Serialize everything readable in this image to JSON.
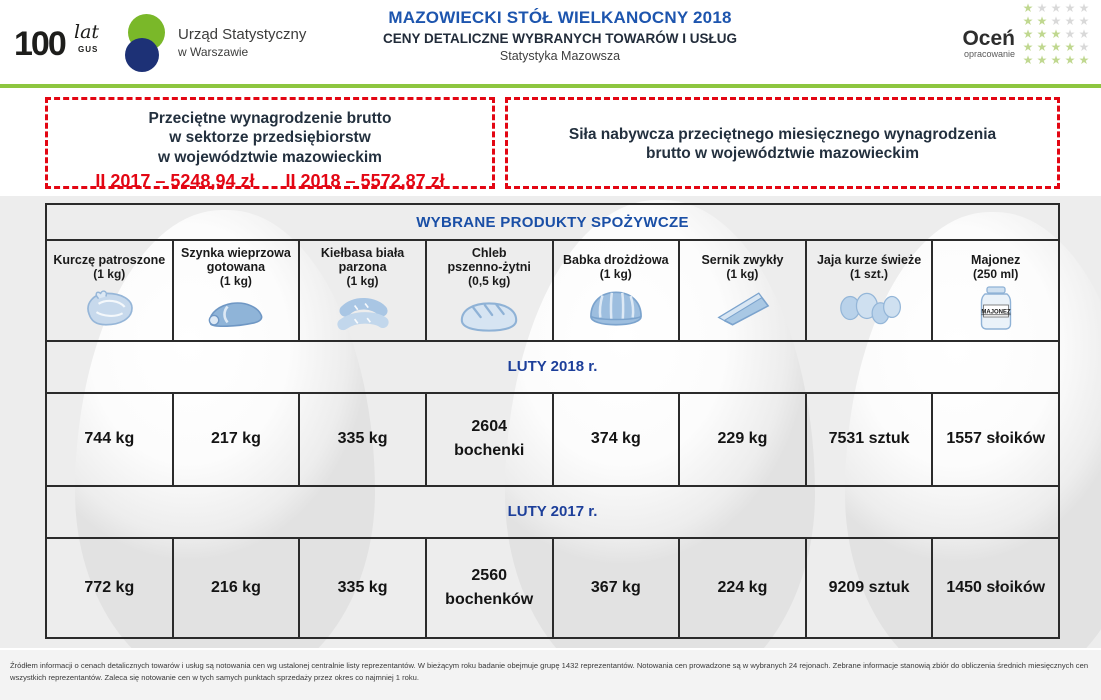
{
  "header": {
    "logo": {
      "num": "100",
      "lat": "lat",
      "gus": "GUS",
      "office_line1": "Urząd Statystyczny",
      "office_line2": "w Warszawie"
    },
    "title_line1": "MAZOWIECKI STÓŁ WIELKANOCNY 2018",
    "title_line2": "CENY DETALICZNE WYBRANYCH TOWARÓW I USŁUG",
    "title_line3": "Statystyka Mazowsza",
    "rate_widget": {
      "label_main": "Oceń",
      "label_sub": "opracowanie",
      "green_per_row": [
        1,
        2,
        3,
        4,
        5
      ],
      "stars_per_row": 5
    }
  },
  "wage_box": {
    "line1": "Przeciętne wynagrodzenie brutto",
    "line2": "w sektorze przedsiębiorstw",
    "line3": "w województwie mazowieckim",
    "value_2017": "II 2017 – 5248,94 zł",
    "value_2018": "II 2018 – 5572,87 zł"
  },
  "purchasing_power_box": {
    "line1": "Siła nabywcza przeciętnego miesięcznego wynagrodzenia",
    "line2": "brutto w województwie mazowieckim"
  },
  "table": {
    "title": "WYBRANE PRODUKTY SPOŻYWCZE",
    "period_2018": "LUTY 2018 r.",
    "period_2017": "LUTY 2017 r.",
    "products": [
      {
        "name": "Kurczę patroszone",
        "unit": "(1 kg)",
        "icon": "chicken",
        "feb2018": "744 kg",
        "feb2017": "772 kg"
      },
      {
        "name": "Szynka wieprzowa\ngotowana",
        "unit": "(1 kg)",
        "icon": "ham",
        "feb2018": "217 kg",
        "feb2017": "216 kg"
      },
      {
        "name": "Kiełbasa biała\nparzona",
        "unit": "(1 kg)",
        "icon": "white-sausage",
        "feb2018": "335 kg",
        "feb2017": "335 kg"
      },
      {
        "name": "Chleb\npszenno-żytni",
        "unit": "(0,5 kg)",
        "icon": "bread-loaf",
        "feb2018": "2604\nbochenki",
        "feb2017": "2560\nbochenków"
      },
      {
        "name": "Babka drożdżowa",
        "unit": "(1 kg)",
        "icon": "bundt-cake",
        "feb2018": "374 kg",
        "feb2017": "367 kg"
      },
      {
        "name": "Sernik zwykły",
        "unit": "(1 kg)",
        "icon": "cheesecake-slice",
        "feb2018": "229 kg",
        "feb2017": "224 kg"
      },
      {
        "name": "Jaja kurze świeże",
        "unit": "(1 szt.)",
        "icon": "eggs",
        "feb2018": "7531 sztuk",
        "feb2017": "9209 sztuk"
      },
      {
        "name": "Majonez",
        "unit": "(250 ml)",
        "icon": "mayonnaise-jar",
        "jar_label": "MAJONEZ",
        "feb2018": "1557 słoików",
        "feb2017": "1450 słoików"
      }
    ]
  },
  "footnote": "Źródłem informacji o cenach detalicznych towarów i usług są notowania cen wg ustalonej centralnie listy reprezentantów. W bieżącym roku badanie obejmuje grupę 1432 reprezentantów. Notowania cen prowadzone są w wybranych 24 rejonach. Zebrane informacje stanowią zbiór do obliczenia średnich miesięcznych cen wszystkich reprezentantów. Zaleca się notowanie cen w tych samych punktach sprzedaży przez okres co najmniej 1 roku.",
  "colors": {
    "title_blue": "#1d55ae",
    "table_blue": "#1a4fa6",
    "period_blue": "#1d3f9a",
    "navy_text": "#23303e",
    "red": "#e30613",
    "green_line": "#8dc63f",
    "star_green": "#c0d890",
    "star_gray": "#d9d9d9",
    "icon_blue": "#a9c6e4"
  }
}
